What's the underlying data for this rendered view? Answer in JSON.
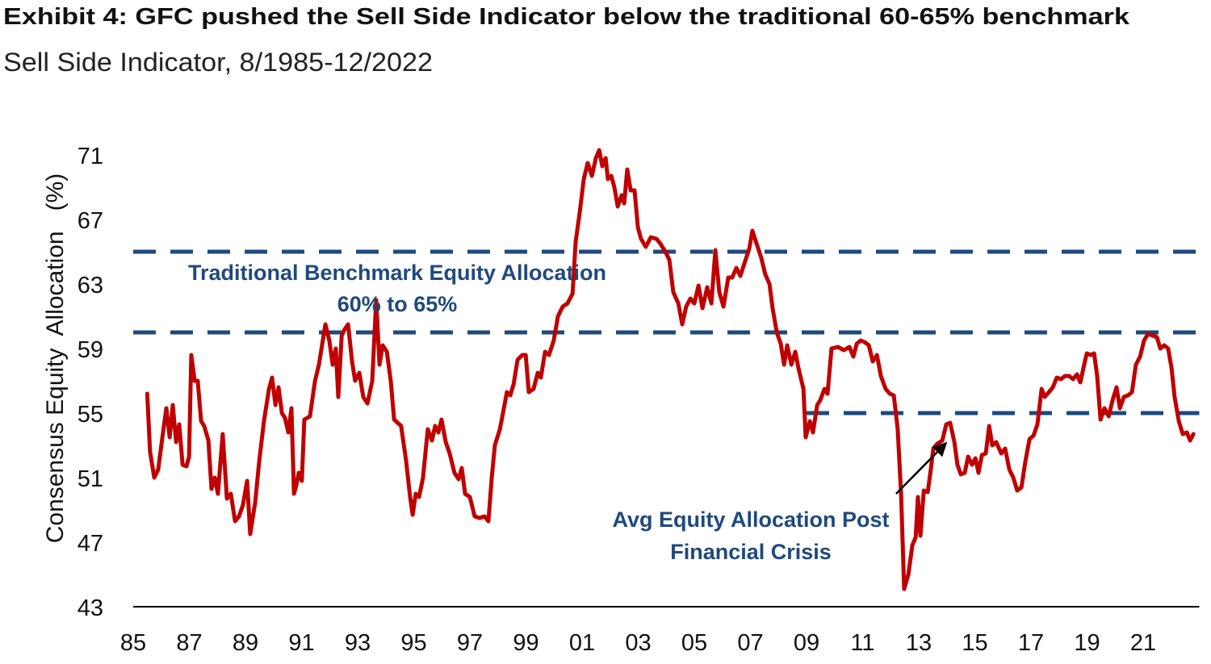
{
  "chart_data": {
    "type": "line",
    "title": "Exhibit 4: GFC pushed the Sell Side Indicator below the traditional 60-65% benchmark",
    "subtitle": "Sell Side Indicator, 8/1985-12/2022",
    "y_label": "Consensus Equity  Allocation   (%)",
    "annotations": [
      "Traditional Benchmark Equity Allocation",
      "60% to 65%",
      "Avg Equity Allocation Post",
      "Financial Crisis"
    ],
    "color": "#c00000",
    "reference_color": "#1f497d",
    "reference_lines": [
      {
        "value": 65
      },
      {
        "value": 60
      },
      {
        "value": 55,
        "x_start": 2009.0
      }
    ],
    "xlim": [
      1985,
      2023
    ],
    "ylim": [
      43,
      71
    ],
    "yticks": [
      43,
      47,
      51,
      55,
      59,
      63,
      67,
      71
    ],
    "xticks": [
      {
        "value": 1985,
        "label": "85"
      },
      {
        "value": 1987,
        "label": "87"
      },
      {
        "value": 1989,
        "label": "89"
      },
      {
        "value": 1991,
        "label": "91"
      },
      {
        "value": 1993,
        "label": "93"
      },
      {
        "value": 1995,
        "label": "95"
      },
      {
        "value": 1997,
        "label": "97"
      },
      {
        "value": 1999,
        "label": "99"
      },
      {
        "value": 2001,
        "label": "01"
      },
      {
        "value": 2003,
        "label": "03"
      },
      {
        "value": 2005,
        "label": "05"
      },
      {
        "value": 2007,
        "label": "07"
      },
      {
        "value": 2009,
        "label": "09"
      },
      {
        "value": 2011,
        "label": "11"
      },
      {
        "value": 2013,
        "label": "13"
      },
      {
        "value": 2015,
        "label": "15"
      },
      {
        "value": 2017,
        "label": "17"
      },
      {
        "value": 2019,
        "label": "19"
      },
      {
        "value": 2021,
        "label": "21"
      }
    ],
    "grid": false,
    "x": [
      1985.5,
      1985.6,
      1985.75,
      1985.89,
      1986.04,
      1986.18,
      1986.3,
      1986.41,
      1986.53,
      1986.64,
      1986.76,
      1986.9,
      1986.99,
      1987.07,
      1987.19,
      1987.3,
      1987.42,
      1987.53,
      1987.68,
      1987.79,
      1987.91,
      1988.02,
      1988.19,
      1988.34,
      1988.48,
      1988.63,
      1988.77,
      1988.91,
      1989.06,
      1989.17,
      1989.35,
      1989.49,
      1989.66,
      1989.84,
      1989.95,
      1990.07,
      1990.18,
      1990.3,
      1990.41,
      1990.53,
      1990.64,
      1990.73,
      1990.81,
      1990.9,
      1991.01,
      1991.1,
      1991.3,
      1991.48,
      1991.62,
      1991.73,
      1991.85,
      1991.99,
      1992.11,
      1992.22,
      1992.31,
      1992.43,
      1992.54,
      1992.66,
      1992.8,
      1992.91,
      1993.06,
      1993.2,
      1993.35,
      1993.52,
      1993.66,
      1993.78,
      1993.89,
      1994.04,
      1994.18,
      1994.3,
      1994.55,
      1994.73,
      1994.87,
      1994.96,
      1995.07,
      1995.19,
      1995.33,
      1995.5,
      1995.65,
      1995.76,
      1995.88,
      1995.99,
      1996.14,
      1996.28,
      1996.45,
      1996.6,
      1996.71,
      1996.83,
      1997.0,
      1997.17,
      1997.35,
      1997.52,
      1997.66,
      1997.78,
      1997.89,
      1998.07,
      1998.18,
      1998.32,
      1998.44,
      1998.56,
      1998.7,
      1998.87,
      1998.99,
      1999.1,
      1999.27,
      1999.42,
      1999.53,
      1999.68,
      1999.82,
      1999.99,
      2000.14,
      2000.31,
      2000.48,
      2000.66,
      2000.77,
      2000.92,
      2001.06,
      2001.2,
      2001.35,
      2001.49,
      2001.61,
      2001.72,
      2001.84,
      2001.92,
      2002.04,
      2002.15,
      2002.27,
      2002.41,
      2002.5,
      2002.61,
      2002.73,
      2002.87,
      2002.99,
      2003.1,
      2003.27,
      2003.45,
      2003.65,
      2003.79,
      2003.97,
      2004.11,
      2004.25,
      2004.43,
      2004.57,
      2004.71,
      2004.86,
      2005.0,
      2005.15,
      2005.29,
      2005.46,
      2005.61,
      2005.75,
      2005.89,
      2006.04,
      2006.21,
      2006.35,
      2006.5,
      2006.64,
      2006.79,
      2006.96,
      2007.07,
      2007.22,
      2007.39,
      2007.53,
      2007.68,
      2007.79,
      2007.94,
      2008.08,
      2008.2,
      2008.31,
      2008.46,
      2008.6,
      2008.71,
      2008.89,
      2008.97,
      2009.12,
      2009.23,
      2009.38,
      2009.49,
      2009.64,
      2009.75,
      2009.89,
      2010.12,
      2010.33,
      2010.53,
      2010.67,
      2010.79,
      2010.93,
      2011.07,
      2011.22,
      2011.36,
      2011.51,
      2011.65,
      2011.82,
      2011.97,
      2012.11,
      2012.25,
      2012.37,
      2012.48,
      2012.63,
      2012.77,
      2012.89,
      2012.97,
      2013.06,
      2013.18,
      2013.32,
      2013.43,
      2013.52,
      2013.66,
      2013.84,
      2013.98,
      2014.12,
      2014.27,
      2014.38,
      2014.5,
      2014.64,
      2014.76,
      2014.9,
      2015.02,
      2015.13,
      2015.25,
      2015.39,
      2015.51,
      2015.62,
      2015.76,
      2015.94,
      2016.08,
      2016.23,
      2016.37,
      2016.51,
      2016.66,
      2016.8,
      2016.95,
      2017.09,
      2017.23,
      2017.38,
      2017.49,
      2017.64,
      2017.78,
      2017.92,
      2018.07,
      2018.21,
      2018.36,
      2018.5,
      2018.64,
      2018.76,
      2018.87,
      2018.99,
      2019.13,
      2019.25,
      2019.36,
      2019.48,
      2019.62,
      2019.77,
      2019.91,
      2020.05,
      2020.17,
      2020.31,
      2020.46,
      2020.6,
      2020.74,
      2020.89,
      2021.03,
      2021.17,
      2021.35,
      2021.49,
      2021.61,
      2021.75,
      2021.89,
      2022.01,
      2022.12,
      2022.27,
      2022.41,
      2022.56,
      2022.67,
      2022.79
    ],
    "values": [
      56.2,
      52.6,
      51,
      51.5,
      53.5,
      55.3,
      53.5,
      55.5,
      53.2,
      54.3,
      51.8,
      51.7,
      52.3,
      58.6,
      57,
      57,
      54.5,
      54.2,
      53.3,
      50.3,
      51,
      50,
      53.7,
      49.7,
      50,
      48.3,
      48.6,
      49.3,
      50.8,
      47.5,
      49.5,
      52,
      54.5,
      56.5,
      57.2,
      55.5,
      56.6,
      55,
      54.7,
      53.8,
      55.3,
      50,
      50.5,
      51.3,
      50.8,
      54.6,
      54.8,
      57,
      58,
      59.2,
      60.5,
      59.5,
      58,
      59,
      56,
      59.8,
      60.2,
      60.5,
      58.2,
      57,
      57.5,
      56,
      55.6,
      57,
      62,
      58,
      59.2,
      58.8,
      57,
      54.6,
      54.2,
      52,
      49.8,
      48.7,
      50,
      49.8,
      51,
      54,
      53.3,
      54.2,
      53.8,
      54.6,
      53.2,
      52.5,
      51.3,
      50.9,
      51.6,
      50,
      49.8,
      48.6,
      48.5,
      48.6,
      48.3,
      51,
      53,
      54,
      55,
      56.3,
      56.1,
      56.8,
      58.3,
      58.6,
      58.6,
      56.3,
      56.5,
      57.5,
      57.2,
      58.8,
      58.6,
      59.5,
      61,
      61.6,
      61.8,
      62.4,
      65.6,
      67.5,
      69.5,
      70.5,
      69.7,
      70.8,
      71.3,
      70.3,
      70.8,
      69.5,
      69.7,
      69,
      67.8,
      68.5,
      68,
      70.1,
      68.8,
      68.8,
      66.5,
      65.8,
      65.3,
      65.9,
      65.8,
      65.5,
      65,
      64.5,
      62.5,
      61.8,
      60.5,
      61.6,
      62.1,
      61.8,
      62.9,
      61.5,
      62.8,
      61.8,
      65.1,
      62.5,
      61.6,
      63.4,
      63.4,
      64,
      63.5,
      64.3,
      65.2,
      66.3,
      65.5,
      64.6,
      63.6,
      63,
      61.5,
      60,
      59.3,
      58,
      59.2,
      58,
      58.8,
      57.8,
      56.5,
      53.5,
      54.5,
      53.8,
      55.5,
      55.8,
      56.5,
      56.2,
      59,
      59.1,
      58.9,
      59.1,
      58.5,
      59.3,
      59.5,
      59.4,
      59.2,
      58.2,
      58.6,
      57.3,
      56.5,
      56.2,
      56.1,
      54,
      50,
      44.1,
      45,
      46.8,
      47.3,
      49.8,
      47.4,
      50.2,
      50.1,
      51.5,
      52.8,
      53.1,
      53.3,
      54.3,
      54.4,
      53.2,
      51.8,
      51.2,
      51.3,
      52.3,
      51.8,
      52.2,
      51.3,
      52.4,
      52.5,
      54.2,
      53,
      53.2,
      52.5,
      52.8,
      51.5,
      51,
      50.2,
      50.4,
      52,
      53.4,
      53.6,
      54.3,
      56.5,
      56,
      56.3,
      56.6,
      57.2,
      57.1,
      57.3,
      57.3,
      57.1,
      57.4,
      56.9,
      57.8,
      58.7,
      58.6,
      58.7,
      57.3,
      54.6,
      55.3,
      54.8,
      55.8,
      56.6,
      55.3,
      56,
      56.1,
      56.3,
      58,
      58.5,
      59.5,
      59.9,
      59.8,
      59.7,
      59,
      59.2,
      59,
      57.8,
      56,
      54.5,
      53.7,
      53.8,
      53.3,
      53.7
    ]
  }
}
